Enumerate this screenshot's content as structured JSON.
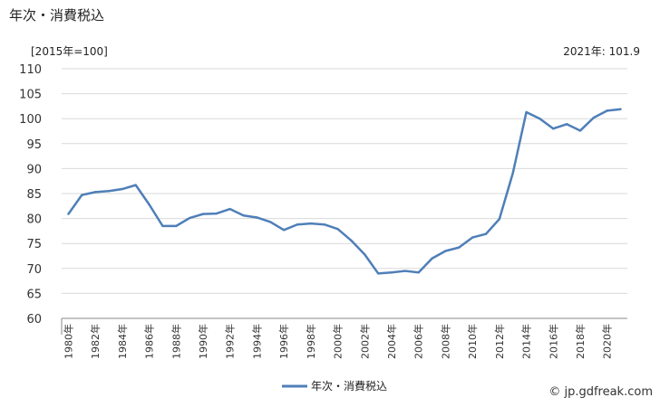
{
  "page": {
    "title": "年次・消費税込",
    "unit_label": "[2015年=100]",
    "latest_label": "2021年: 101.9",
    "credit": "© jp.gdfreak.com"
  },
  "chart_data": {
    "type": "line",
    "title": "年次・消費税込",
    "ylabel": "[2015年=100]",
    "ylim": [
      60,
      110
    ],
    "yticks": [
      60,
      65,
      70,
      75,
      80,
      85,
      90,
      95,
      100,
      105,
      110
    ],
    "grid": true,
    "legend_position": "bottom-center",
    "x": [
      "1980",
      "1981",
      "1982",
      "1983",
      "1984",
      "1985",
      "1986",
      "1987",
      "1988",
      "1989",
      "1990",
      "1991",
      "1992",
      "1993",
      "1994",
      "1995",
      "1996",
      "1997",
      "1998",
      "1999",
      "2000",
      "2001",
      "2002",
      "2003",
      "2004",
      "2005",
      "2006",
      "2007",
      "2008",
      "2009",
      "2010",
      "2011",
      "2012",
      "2013",
      "2014",
      "2015",
      "2016",
      "2017",
      "2018",
      "2019",
      "2020",
      "2021"
    ],
    "xtick_labels": [
      "1980年",
      "1982年",
      "1984年",
      "1986年",
      "1988年",
      "1990年",
      "1992年",
      "1994年",
      "1996年",
      "1998年",
      "2000年",
      "2002年",
      "2004年",
      "2006年",
      "2008年",
      "2010年",
      "2012年",
      "2014年",
      "2016年",
      "2018年",
      "2020年"
    ],
    "series": [
      {
        "name": "年次・消費税込",
        "color": "#4f7fb8",
        "values": [
          80.9,
          84.7,
          85.3,
          85.5,
          85.9,
          86.7,
          82.8,
          78.5,
          78.5,
          80.1,
          80.9,
          81.0,
          81.9,
          80.6,
          80.2,
          79.3,
          77.7,
          78.8,
          79.0,
          78.8,
          77.9,
          75.6,
          72.8,
          69.0,
          69.2,
          69.5,
          69.2,
          72.0,
          73.5,
          74.2,
          76.2,
          76.9,
          79.9,
          89.1,
          101.3,
          100.0,
          98.0,
          98.9,
          97.6,
          100.2,
          101.6,
          101.9
        ]
      }
    ]
  }
}
